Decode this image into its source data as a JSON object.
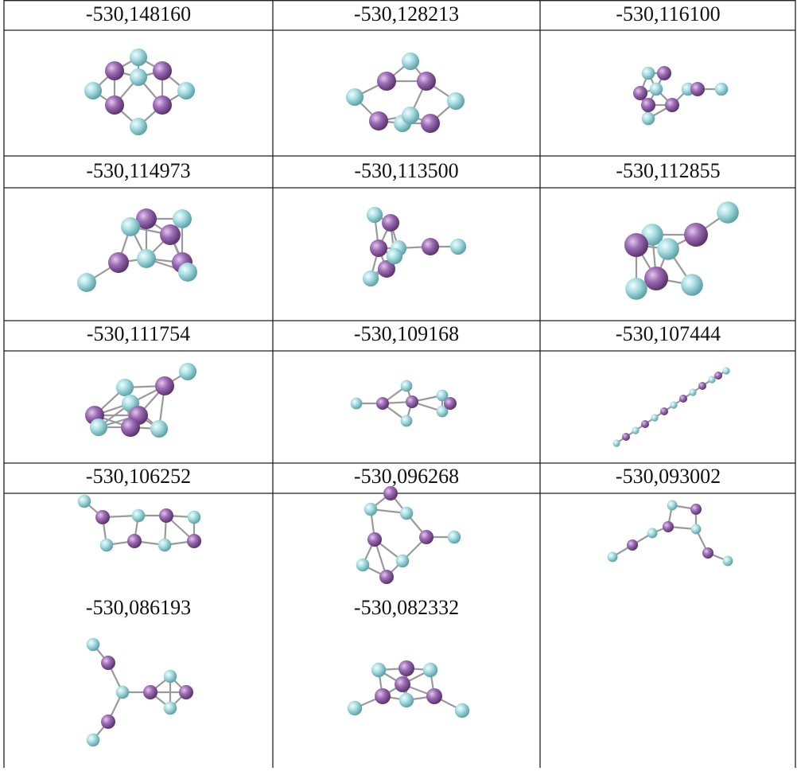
{
  "table": {
    "rows": [
      [
        "-530,148160",
        "-530,128213",
        "-530,116100"
      ],
      [
        "-530,114973",
        "-530,113500",
        "-530,112855"
      ],
      [
        "-530,111754",
        "-530,109168",
        "-530,107444"
      ],
      [
        "-530,106252",
        "-530,096268",
        "-530,093002"
      ],
      [
        "-530,086193",
        "-530,082332"
      ]
    ]
  }
}
